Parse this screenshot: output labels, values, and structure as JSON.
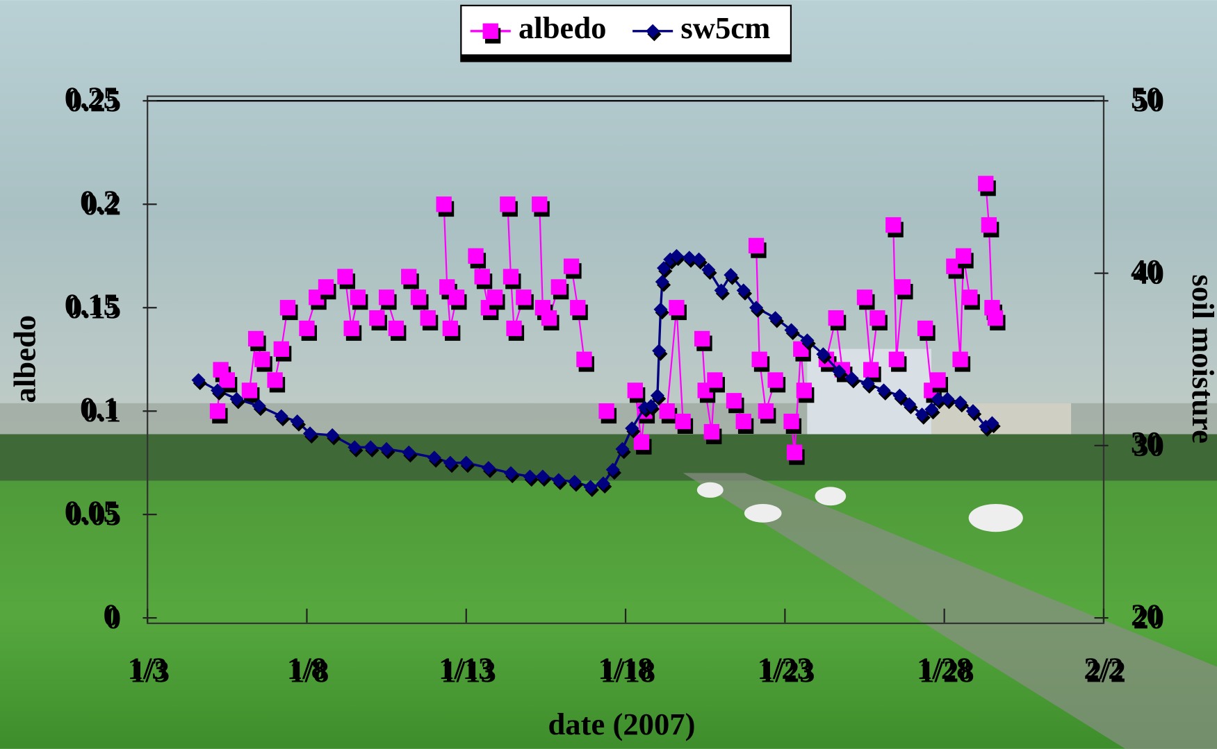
{
  "chart_data": {
    "type": "line",
    "xlabel": "date (2007)",
    "ylabel": "albedo",
    "y2label": "soil moisture",
    "xlim": [
      3,
      33
    ],
    "xticks": [
      {
        "value": 3,
        "label": "1/3"
      },
      {
        "value": 8,
        "label": "1/8"
      },
      {
        "value": 13,
        "label": "1/13"
      },
      {
        "value": 18,
        "label": "1/18"
      },
      {
        "value": 23,
        "label": "1/23"
      },
      {
        "value": 28,
        "label": "1/28"
      },
      {
        "value": 33,
        "label": "2/2"
      }
    ],
    "ylim": [
      0,
      0.25
    ],
    "yticks": [
      0,
      0.05,
      0.1,
      0.15,
      0.2,
      0.25
    ],
    "y2lim": [
      20,
      50
    ],
    "y2ticks": [
      20,
      30,
      40,
      50
    ],
    "legend": "top",
    "series": [
      {
        "name": "albedo",
        "color": "#ff00ff",
        "marker": "square",
        "x": [
          5.2,
          5.3,
          5.5,
          5.8,
          6.2,
          6.4,
          6.6,
          6.8,
          7.0,
          7.2,
          7.4,
          7.7,
          8.0,
          8.3,
          8.6,
          8.9,
          9.2,
          9.4,
          9.6,
          9.9,
          10.2,
          10.5,
          10.8,
          11.0,
          11.2,
          11.5,
          11.8,
          12.0,
          12.3,
          12.4,
          12.5,
          12.7,
          13.0,
          13.3,
          13.5,
          13.7,
          13.9,
          14.1,
          14.3,
          14.4,
          14.5,
          14.8,
          15.0,
          15.3,
          15.4,
          15.6,
          15.9,
          16.1,
          16.3,
          16.5,
          16.7,
          17.0,
          17.4,
          17.8,
          18.3,
          18.5,
          18.6,
          19.0,
          19.3,
          19.6,
          19.8,
          20.1,
          20.4,
          20.5,
          20.7,
          20.8,
          21.1,
          21.4,
          21.7,
          21.9,
          22.1,
          22.2,
          22.4,
          22.7,
          22.9,
          23.2,
          23.3,
          23.5,
          23.6,
          23.9,
          24.3,
          24.6,
          24.8,
          25.1,
          25.5,
          25.7,
          25.9,
          26.1,
          26.4,
          26.5,
          26.7,
          27.0,
          27.4,
          27.6,
          27.8,
          28.0,
          28.3,
          28.5,
          28.6,
          28.8,
          29.0,
          29.3,
          29.4,
          29.5,
          29.6
        ],
        "values": [
          0.1,
          0.12,
          0.115,
          null,
          0.11,
          0.135,
          0.125,
          null,
          0.115,
          0.13,
          0.15,
          null,
          0.14,
          0.155,
          0.16,
          null,
          0.165,
          0.14,
          0.155,
          null,
          0.145,
          0.155,
          0.14,
          null,
          0.165,
          0.155,
          0.145,
          null,
          0.2,
          0.16,
          0.14,
          0.155,
          null,
          0.175,
          0.165,
          0.15,
          0.155,
          null,
          0.2,
          0.165,
          0.14,
          0.155,
          null,
          0.2,
          0.15,
          0.145,
          0.16,
          null,
          0.17,
          0.15,
          0.125,
          null,
          0.1,
          null,
          0.11,
          0.085,
          0.1,
          null,
          0.1,
          0.15,
          0.095,
          null,
          0.135,
          0.11,
          0.09,
          0.115,
          null,
          0.105,
          0.095,
          null,
          0.18,
          0.125,
          0.1,
          0.115,
          null,
          0.095,
          0.08,
          0.13,
          0.11,
          null,
          0.125,
          0.145,
          0.12,
          null,
          0.155,
          0.12,
          0.145,
          null,
          0.19,
          0.125,
          0.16,
          null,
          0.14,
          0.11,
          0.115,
          null,
          0.17,
          0.125,
          0.175,
          0.155,
          null,
          0.21,
          0.19,
          0.15,
          0.145
        ]
      },
      {
        "name": "sw5cm",
        "color": "#000080",
        "marker": "diamond",
        "axis": "y2",
        "x": [
          4.6,
          5.2,
          5.8,
          6.5,
          7.2,
          7.7,
          8.1,
          8.8,
          9.5,
          10.0,
          10.5,
          11.2,
          12.0,
          12.5,
          13.0,
          13.7,
          14.4,
          15.0,
          15.4,
          15.9,
          16.4,
          16.9,
          17.3,
          17.6,
          17.9,
          18.2,
          18.6,
          18.8,
          19.0,
          19.05,
          19.1,
          19.15,
          19.2,
          19.4,
          19.6,
          20.0,
          20.3,
          20.6,
          21.0,
          21.3,
          21.7,
          22.1,
          22.7,
          23.2,
          23.7,
          24.2,
          24.7,
          25.1,
          25.6,
          26.1,
          26.6,
          26.9,
          27.3,
          27.6,
          27.8,
          28.1,
          28.5,
          28.9,
          29.3,
          29.5
        ],
        "values": [
          33.8,
          33.2,
          32.7,
          32.3,
          31.7,
          31.4,
          30.7,
          30.6,
          29.9,
          29.9,
          29.8,
          29.6,
          29.3,
          29.0,
          29.0,
          28.7,
          28.4,
          28.2,
          28.2,
          28.0,
          27.9,
          27.6,
          27.8,
          28.6,
          29.8,
          31.0,
          32.2,
          32.3,
          32.9,
          35.5,
          37.9,
          39.5,
          40.3,
          40.8,
          41.0,
          40.9,
          40.8,
          40.2,
          39.0,
          39.9,
          39.0,
          38.0,
          37.4,
          36.7,
          36.1,
          35.3,
          34.3,
          33.9,
          33.6,
          33.2,
          32.9,
          32.4,
          31.8,
          32.1,
          32.7,
          32.7,
          32.5,
          32.0,
          31.1,
          31.3
        ]
      }
    ]
  }
}
